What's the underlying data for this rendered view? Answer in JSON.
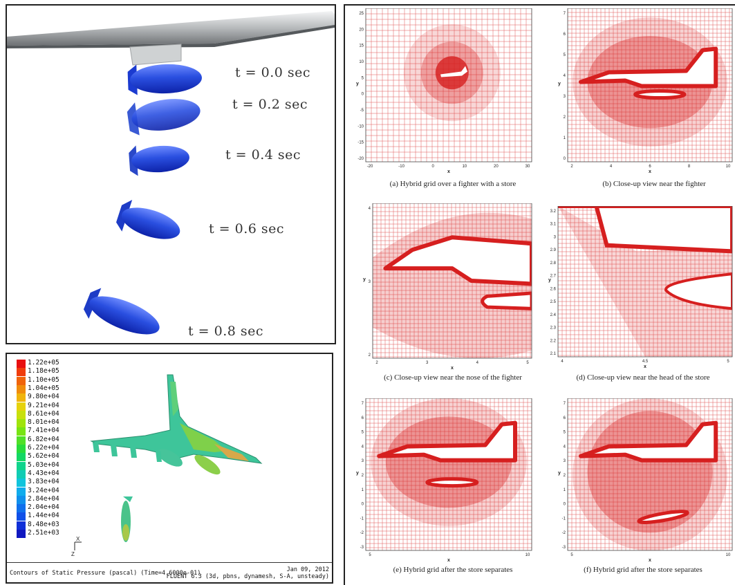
{
  "store_panel": {
    "time_labels": [
      "t = 0.0 sec",
      "t = 0.2 sec",
      "t = 0.4 sec",
      "t = 0.6 sec",
      "t = 0.8 sec"
    ],
    "colors": {
      "store": "#2a4fe0",
      "wing": "#b9bcbe"
    }
  },
  "contour_panel": {
    "legend_values": [
      "1.22e+05",
      "1.18e+05",
      "1.10e+05",
      "1.04e+05",
      "9.80e+04",
      "9.21e+04",
      "8.61e+04",
      "8.01e+04",
      "7.41e+04",
      "6.82e+04",
      "6.22e+04",
      "5.62e+04",
      "5.03e+04",
      "4.43e+04",
      "3.83e+04",
      "3.24e+04",
      "2.84e+04",
      "2.04e+04",
      "1.44e+04",
      "8.48e+03",
      "2.51e+03"
    ],
    "legend_colors": [
      "#e81010",
      "#f03c0c",
      "#f0640c",
      "#f08c0c",
      "#f0b40c",
      "#e6d20c",
      "#c8e00c",
      "#a0e40c",
      "#78e414",
      "#50e028",
      "#28dc3c",
      "#14d864",
      "#10d48c",
      "#10ccb4",
      "#10c4dc",
      "#10acec",
      "#1090ec",
      "#1070ec",
      "#1050e8",
      "#1030d8",
      "#1018c0"
    ],
    "footer_left": "Contours of Static Pressure (pascal)  (Time=4.6000e-01)",
    "footer_right_line1": "Jan 09, 2012",
    "footer_right_line2": "FLUENT 6.3 (3d, pbns, dynamesh, S-A, unsteady)",
    "axis_labels": {
      "x": "X",
      "z": "Z"
    }
  },
  "grid_panel": {
    "grid_color": "#d61f1f",
    "subplots": [
      {
        "id": "a",
        "caption": "(a) Hybrid grid over a fighter with a store",
        "xlabel": "x",
        "ylabel": "y",
        "xticks": [
          "-20",
          "-10",
          "0",
          "10",
          "20",
          "30"
        ],
        "yticks": [
          "25",
          "20",
          "15",
          "10",
          "5",
          "0",
          "-5",
          "-10",
          "-15",
          "-20"
        ]
      },
      {
        "id": "b",
        "caption": "(b) Close-up view near the fighter",
        "xlabel": "x",
        "ylabel": "y",
        "xticks": [
          "2",
          "4",
          "6",
          "8",
          "10"
        ],
        "yticks": [
          "7",
          "6",
          "5",
          "4",
          "3",
          "2",
          "1",
          "0"
        ]
      },
      {
        "id": "c",
        "caption": "(c) Close-up view near the nose of the fighter",
        "xlabel": "x",
        "ylabel": "y",
        "xticks": [
          "2",
          "3",
          "4",
          "5"
        ],
        "yticks": [
          "4",
          "3",
          "2"
        ]
      },
      {
        "id": "d",
        "caption": "(d) Close-up view near the head of the store",
        "xlabel": "x",
        "ylabel": "y",
        "xticks": [
          "4",
          "4.5",
          "5"
        ],
        "yticks": [
          "3.2",
          "3.1",
          "3",
          "2.9",
          "2.8",
          "2.7",
          "2.6",
          "2.5",
          "2.4",
          "2.3",
          "2.2",
          "2.1"
        ]
      },
      {
        "id": "e",
        "caption": "(e) Hybrid grid after the store separates",
        "xlabel": "x",
        "ylabel": "y",
        "xticks": [
          "5",
          "10"
        ],
        "yticks": [
          "7",
          "6",
          "5",
          "4",
          "3",
          "2",
          "1",
          "0",
          "-1",
          "-2",
          "-3"
        ]
      },
      {
        "id": "f",
        "caption": "(f) Hybrid grid after the store separates",
        "xlabel": "x",
        "ylabel": "y",
        "xticks": [
          "5",
          "10"
        ],
        "yticks": [
          "7",
          "6",
          "5",
          "4",
          "3",
          "2",
          "1",
          "0",
          "-1",
          "-2",
          "-3"
        ]
      }
    ]
  }
}
